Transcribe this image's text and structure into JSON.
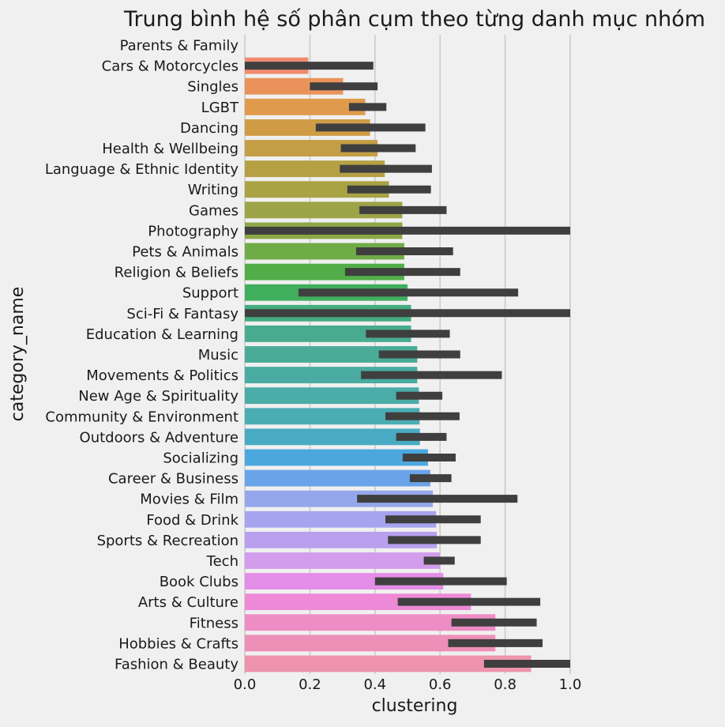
{
  "chart_data": {
    "type": "bar",
    "orientation": "horizontal",
    "title": "Trung bình hệ số phân cụm theo từng danh mục nhóm",
    "xlabel": "clustering",
    "ylabel": "category_name",
    "xlim": [
      0.0,
      1.0
    ],
    "xticks": [
      "0.0",
      "0.2",
      "0.4",
      "0.6",
      "0.8",
      "1.0"
    ],
    "grid": "vertical",
    "error_bars": true,
    "categories": [
      "Parents & Family",
      "Cars & Motorcycles",
      "Singles",
      "LGBT",
      "Dancing",
      "Health & Wellbeing",
      "Language & Ethnic Identity",
      "Writing",
      "Games",
      "Photography",
      "Pets & Animals",
      "Religion & Beliefs",
      "Support",
      "Sci-Fi & Fantasy",
      "Education & Learning",
      "Music",
      "Movements & Politics",
      "New Age & Spirituality",
      "Community & Environment",
      "Outdoors & Adventure",
      "Socializing",
      "Career & Business",
      "Movies & Film",
      "Food & Drink",
      "Sports & Recreation",
      "Tech",
      "Book Clubs",
      "Arts & Culture",
      "Fitness",
      "Hobbies & Crafts",
      "Fashion & Beauty"
    ],
    "values": [
      0.0,
      0.195,
      0.302,
      0.37,
      0.385,
      0.408,
      0.43,
      0.443,
      0.484,
      0.484,
      0.49,
      0.49,
      0.5,
      0.511,
      0.511,
      0.53,
      0.53,
      0.535,
      0.537,
      0.538,
      0.563,
      0.57,
      0.578,
      0.588,
      0.59,
      0.6,
      0.61,
      0.695,
      0.77,
      0.77,
      0.88
    ],
    "error_low": [
      0.0,
      0.0,
      0.2,
      0.32,
      0.218,
      0.295,
      0.292,
      0.315,
      0.352,
      0.0,
      0.342,
      0.308,
      0.165,
      0.0,
      0.372,
      0.412,
      0.357,
      0.465,
      0.432,
      0.465,
      0.485,
      0.507,
      0.345,
      0.432,
      0.44,
      0.55,
      0.4,
      0.47,
      0.635,
      0.625,
      0.735
    ],
    "error_high": [
      0.0,
      0.395,
      0.408,
      0.435,
      0.555,
      0.525,
      0.575,
      0.572,
      0.62,
      1.0,
      0.64,
      0.662,
      0.84,
      1.0,
      0.63,
      0.662,
      0.79,
      0.607,
      0.66,
      0.62,
      0.648,
      0.635,
      0.838,
      0.725,
      0.725,
      0.645,
      0.805,
      0.908,
      0.897,
      0.915,
      1.0
    ],
    "colors": [
      "#f47a72",
      "#f08a6f",
      "#e9935b",
      "#e09a4c",
      "#cf9c45",
      "#c39e45",
      "#b6a044",
      "#a9a345",
      "#9ca447",
      "#8da747",
      "#6fab46",
      "#52ad48",
      "#41ae5e",
      "#45ac80",
      "#48ab8f",
      "#49ab98",
      "#49aba1",
      "#4baca8",
      "#4aadb2",
      "#48abc3",
      "#4aa8de",
      "#6aa3e8",
      "#94a7ec",
      "#a6a4ee",
      "#b8a0ef",
      "#d29ded",
      "#e48de8",
      "#ee89d7",
      "#ee8cc5",
      "#ee8fb8",
      "#ee93ad"
    ]
  }
}
